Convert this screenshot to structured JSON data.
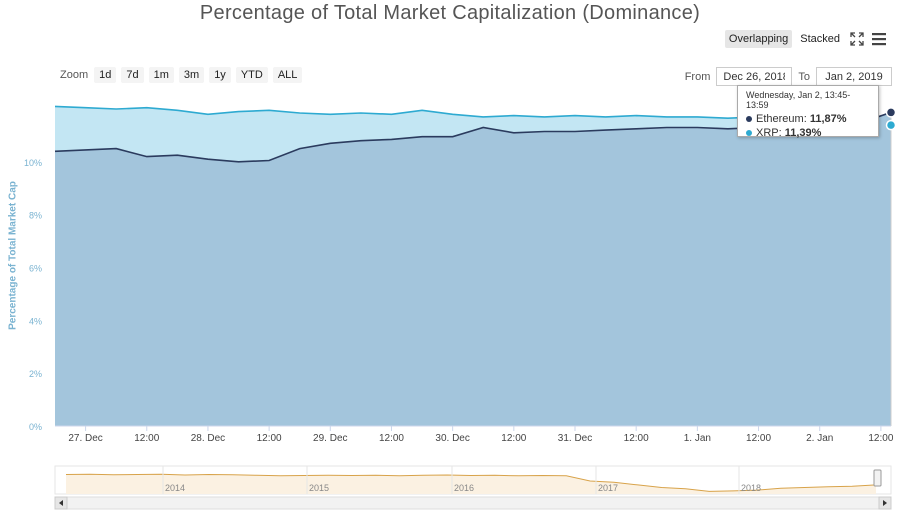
{
  "title": "Percentage of Total Market Capitalization (Dominance)",
  "view_toggle": {
    "overlapping": "Overlapping",
    "stacked": "Stacked",
    "active": "overlapping"
  },
  "icons": {
    "fullscreen": "expand-icon",
    "menu": "hamburger-menu-icon"
  },
  "zoom": {
    "label": "Zoom",
    "buttons": [
      "1d",
      "7d",
      "1m",
      "3m",
      "1y",
      "YTD",
      "ALL"
    ]
  },
  "range": {
    "from_label": "From",
    "from_value": "Dec 26, 2018",
    "to_label": "To",
    "to_value": "Jan 2, 2019"
  },
  "tooltip": {
    "header": "Wednesday, Jan 2, 13:45-13:59",
    "rows": [
      {
        "name": "Ethereum",
        "value": "11,87%",
        "color": "#2b3b5e"
      },
      {
        "name": "XRP",
        "value": "11,39%",
        "color": "#2eaad1"
      }
    ]
  },
  "colors": {
    "ethereum_line": "#2b3b5e",
    "ethereum_fill": "#a3c5dc",
    "xrp_line": "#2eaad1",
    "xrp_fill": "#c3e6f3",
    "grid": "#dde3ea",
    "navigator_line": "#d8a34a",
    "navigator_fill": "#fbf1e2"
  },
  "chart_data": {
    "type": "area",
    "title": "Percentage of Total Market Capitalization (Dominance)",
    "ylabel": "Percentage of Total Market Cap",
    "ylim": [
      0,
      12
    ],
    "y_ticks": [
      0,
      2,
      4,
      6,
      8,
      10
    ],
    "y_tick_labels": [
      "0%",
      "2%",
      "4%",
      "6%",
      "8%",
      "10%"
    ],
    "x_range": [
      "2018-12-26T18:00",
      "2019-01-02T13:59"
    ],
    "x_ticks": [
      {
        "t": "2018-12-27T00:00",
        "label": "27. Dec"
      },
      {
        "t": "2018-12-27T12:00",
        "label": "12:00"
      },
      {
        "t": "2018-12-28T00:00",
        "label": "28. Dec"
      },
      {
        "t": "2018-12-28T12:00",
        "label": "12:00"
      },
      {
        "t": "2018-12-29T00:00",
        "label": "29. Dec"
      },
      {
        "t": "2018-12-29T12:00",
        "label": "12:00"
      },
      {
        "t": "2018-12-30T00:00",
        "label": "30. Dec"
      },
      {
        "t": "2018-12-30T12:00",
        "label": "12:00"
      },
      {
        "t": "2018-12-31T00:00",
        "label": "31. Dec"
      },
      {
        "t": "2018-12-31T12:00",
        "label": "12:00"
      },
      {
        "t": "2019-01-01T00:00",
        "label": "1. Jan"
      },
      {
        "t": "2019-01-01T12:00",
        "label": "12:00"
      },
      {
        "t": "2019-01-02T00:00",
        "label": "2. Jan"
      },
      {
        "t": "2019-01-02T12:00",
        "label": "12:00"
      }
    ],
    "series": [
      {
        "name": "XRP",
        "points": [
          [
            "2018-12-26T18:00",
            12.1
          ],
          [
            "2018-12-27T00:00",
            12.05
          ],
          [
            "2018-12-27T06:00",
            12.0
          ],
          [
            "2018-12-27T12:00",
            12.05
          ],
          [
            "2018-12-27T18:00",
            11.95
          ],
          [
            "2018-12-28T00:00",
            11.8
          ],
          [
            "2018-12-28T06:00",
            11.9
          ],
          [
            "2018-12-28T12:00",
            11.95
          ],
          [
            "2018-12-28T18:00",
            11.85
          ],
          [
            "2018-12-29T00:00",
            11.8
          ],
          [
            "2018-12-29T06:00",
            11.85
          ],
          [
            "2018-12-29T12:00",
            11.8
          ],
          [
            "2018-12-29T18:00",
            11.95
          ],
          [
            "2018-12-30T00:00",
            11.8
          ],
          [
            "2018-12-30T06:00",
            11.7
          ],
          [
            "2018-12-30T12:00",
            11.75
          ],
          [
            "2018-12-30T18:00",
            11.7
          ],
          [
            "2018-12-31T00:00",
            11.75
          ],
          [
            "2018-12-31T06:00",
            11.7
          ],
          [
            "2018-12-31T12:00",
            11.75
          ],
          [
            "2018-12-31T18:00",
            11.7
          ],
          [
            "2019-01-01T00:00",
            11.7
          ],
          [
            "2019-01-01T06:00",
            11.65
          ],
          [
            "2019-01-01T12:00",
            11.7
          ],
          [
            "2019-01-01T18:00",
            11.65
          ],
          [
            "2019-01-02T00:00",
            11.7
          ],
          [
            "2019-01-02T06:00",
            11.75
          ],
          [
            "2019-01-02T13:59",
            11.39
          ]
        ]
      },
      {
        "name": "Ethereum",
        "points": [
          [
            "2018-12-26T18:00",
            10.4
          ],
          [
            "2018-12-27T00:00",
            10.45
          ],
          [
            "2018-12-27T06:00",
            10.5
          ],
          [
            "2018-12-27T12:00",
            10.2
          ],
          [
            "2018-12-27T18:00",
            10.25
          ],
          [
            "2018-12-28T00:00",
            10.1
          ],
          [
            "2018-12-28T06:00",
            10.0
          ],
          [
            "2018-12-28T12:00",
            10.05
          ],
          [
            "2018-12-28T18:00",
            10.5
          ],
          [
            "2018-12-29T00:00",
            10.7
          ],
          [
            "2018-12-29T06:00",
            10.8
          ],
          [
            "2018-12-29T12:00",
            10.85
          ],
          [
            "2018-12-29T18:00",
            10.95
          ],
          [
            "2018-12-30T00:00",
            10.95
          ],
          [
            "2018-12-30T06:00",
            11.3
          ],
          [
            "2018-12-30T12:00",
            11.1
          ],
          [
            "2018-12-30T18:00",
            11.15
          ],
          [
            "2018-12-31T00:00",
            11.15
          ],
          [
            "2018-12-31T06:00",
            11.2
          ],
          [
            "2018-12-31T12:00",
            11.25
          ],
          [
            "2018-12-31T18:00",
            11.3
          ],
          [
            "2019-01-01T00:00",
            11.3
          ],
          [
            "2019-01-01T06:00",
            11.25
          ],
          [
            "2019-01-01T12:00",
            11.3
          ],
          [
            "2019-01-01T18:00",
            11.35
          ],
          [
            "2019-01-02T00:00",
            11.3
          ],
          [
            "2019-01-02T06:00",
            11.35
          ],
          [
            "2019-01-02T13:59",
            11.87
          ]
        ]
      }
    ],
    "navigator": {
      "x_labels": [
        "2014",
        "2015",
        "2016",
        "2017",
        "2018"
      ],
      "series": [
        {
          "name": "XRP",
          "values": [
            0.75,
            0.76,
            0.74,
            0.75,
            0.76,
            0.73,
            0.75,
            0.74,
            0.72,
            0.7,
            0.71,
            0.72,
            0.71,
            0.72,
            0.7,
            0.72,
            0.73,
            0.71,
            0.72,
            0.7,
            0.71,
            0.7,
            0.5,
            0.45,
            0.35,
            0.25,
            0.2,
            0.1,
            0.12,
            0.15,
            0.22,
            0.25,
            0.28,
            0.3,
            0.35
          ]
        }
      ]
    }
  }
}
